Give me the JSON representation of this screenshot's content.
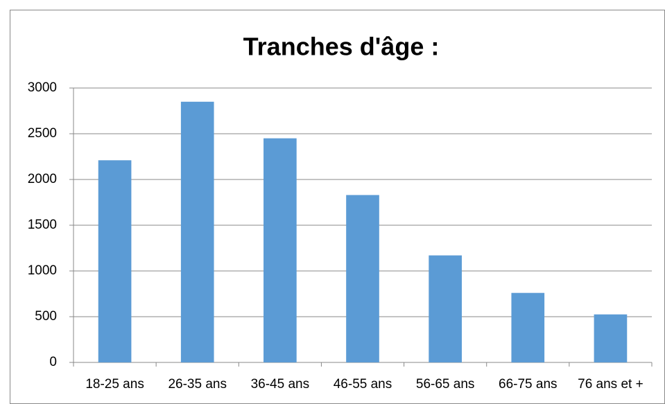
{
  "chart_data": {
    "type": "bar",
    "title": "Tranches d'âge :",
    "categories": [
      "18-25 ans",
      "26-35 ans",
      "36-45 ans",
      "46-55 ans",
      "56-65 ans",
      "66-75 ans",
      "76 ans et +"
    ],
    "values": [
      2210,
      2850,
      2450,
      1830,
      1170,
      760,
      525
    ],
    "color": "#5b9bd5",
    "ylim": [
      0,
      3000
    ],
    "yticks": [
      0,
      500,
      1000,
      1500,
      2000,
      2500,
      3000
    ],
    "grid": true
  }
}
